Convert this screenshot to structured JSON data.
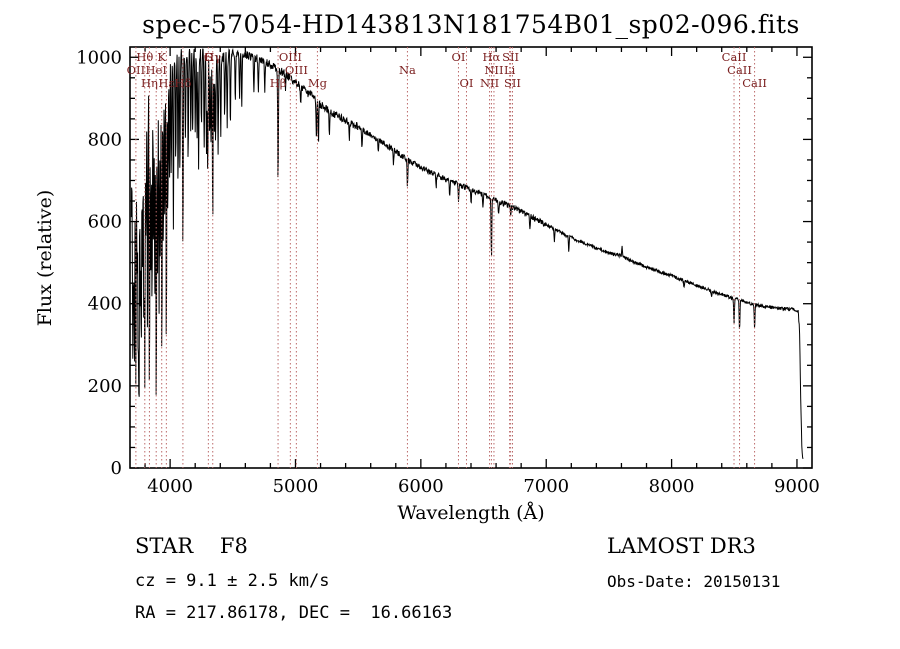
{
  "chart_data": {
    "type": "line",
    "title": "spec-57054-HD143813N181754B01_sp02-096.fits",
    "xlabel": "Wavelength (Å)",
    "ylabel": "Flux (relative)",
    "xlim": [
      3680,
      9120
    ],
    "ylim": [
      0,
      1025
    ],
    "x_ticks": [
      4000,
      5000,
      6000,
      7000,
      8000,
      9000
    ],
    "y_ticks": [
      0,
      200,
      400,
      600,
      800,
      1000
    ],
    "grid": false,
    "legend": "none",
    "colors": {
      "spectrum": "#000000",
      "mark_line": "#bb6a6a",
      "mark_label": "#7b1f1f",
      "axis": "#000000"
    },
    "line_width_angstrom": 4,
    "continuum": [
      [
        3690,
        620
      ],
      [
        3700,
        800
      ],
      [
        3715,
        855
      ],
      [
        3730,
        875
      ],
      [
        3745,
        890
      ],
      [
        3760,
        900
      ],
      [
        3775,
        908
      ],
      [
        3790,
        918
      ],
      [
        3810,
        932
      ],
      [
        3830,
        948
      ],
      [
        3850,
        958
      ],
      [
        3875,
        968
      ],
      [
        3900,
        978
      ],
      [
        3925,
        984
      ],
      [
        3950,
        990
      ],
      [
        3975,
        996
      ],
      [
        4000,
        1000
      ],
      [
        4030,
        1004
      ],
      [
        4060,
        1006
      ],
      [
        4100,
        1009
      ],
      [
        4150,
        1012
      ],
      [
        4200,
        1012
      ],
      [
        4250,
        1010
      ],
      [
        4300,
        1008
      ],
      [
        4350,
        1005
      ],
      [
        4400,
        1003
      ],
      [
        4450,
        1006
      ],
      [
        4500,
        1012
      ],
      [
        4550,
        1010
      ],
      [
        4600,
        1006
      ],
      [
        4650,
        1001
      ],
      [
        4700,
        996
      ],
      [
        4750,
        990
      ],
      [
        4800,
        983
      ],
      [
        4850,
        973
      ],
      [
        4900,
        963
      ],
      [
        4950,
        951
      ],
      [
        5000,
        939
      ],
      [
        5050,
        926
      ],
      [
        5100,
        913
      ],
      [
        5150,
        901
      ],
      [
        5200,
        885
      ],
      [
        5250,
        873
      ],
      [
        5300,
        863
      ],
      [
        5350,
        854
      ],
      [
        5400,
        847
      ],
      [
        5450,
        839
      ],
      [
        5500,
        831
      ],
      [
        5550,
        821
      ],
      [
        5600,
        811
      ],
      [
        5650,
        801
      ],
      [
        5700,
        791
      ],
      [
        5750,
        781
      ],
      [
        5800,
        771
      ],
      [
        5850,
        759
      ],
      [
        5900,
        749
      ],
      [
        5950,
        741
      ],
      [
        6000,
        733
      ],
      [
        6100,
        717
      ],
      [
        6200,
        702
      ],
      [
        6300,
        690
      ],
      [
        6400,
        678
      ],
      [
        6500,
        666
      ],
      [
        6600,
        653
      ],
      [
        6700,
        639
      ],
      [
        6800,
        624
      ],
      [
        6900,
        608
      ],
      [
        7000,
        592
      ],
      [
        7100,
        576
      ],
      [
        7200,
        561
      ],
      [
        7300,
        548
      ],
      [
        7400,
        536
      ],
      [
        7500,
        524
      ],
      [
        7600,
        516
      ],
      [
        7700,
        501
      ],
      [
        7800,
        489
      ],
      [
        7900,
        478
      ],
      [
        8000,
        468
      ],
      [
        8100,
        456
      ],
      [
        8200,
        445
      ],
      [
        8300,
        433
      ],
      [
        8400,
        423
      ],
      [
        8500,
        412
      ],
      [
        8600,
        403
      ],
      [
        8700,
        396
      ],
      [
        8800,
        391
      ],
      [
        8900,
        388
      ],
      [
        9000,
        385
      ],
      [
        9010,
        381
      ],
      [
        9020,
        340
      ],
      [
        9030,
        170
      ],
      [
        9040,
        40
      ],
      [
        9050,
        18
      ]
    ],
    "absorption_lines": [
      [
        3702,
        280
      ],
      [
        3709,
        500
      ],
      [
        3716,
        240
      ],
      [
        3727,
        170
      ],
      [
        3737,
        460
      ],
      [
        3745,
        290
      ],
      [
        3752,
        140
      ],
      [
        3762,
        400
      ],
      [
        3770,
        270
      ],
      [
        3780,
        500
      ],
      [
        3790,
        340
      ],
      [
        3798,
        220
      ],
      [
        3808,
        540
      ],
      [
        3820,
        290
      ],
      [
        3835,
        160
      ],
      [
        3846,
        480
      ],
      [
        3856,
        370
      ],
      [
        3868,
        530
      ],
      [
        3878,
        400
      ],
      [
        3889,
        130
      ],
      [
        3900,
        460
      ],
      [
        3912,
        370
      ],
      [
        3922,
        500
      ],
      [
        3934,
        250
      ],
      [
        3946,
        540
      ],
      [
        3958,
        600
      ],
      [
        3970,
        280
      ],
      [
        3982,
        620
      ],
      [
        3995,
        680
      ],
      [
        4009,
        700
      ],
      [
        4026,
        580
      ],
      [
        4045,
        740
      ],
      [
        4063,
        690
      ],
      [
        4078,
        730
      ],
      [
        4102,
        530
      ],
      [
        4122,
        790
      ],
      [
        4144,
        750
      ],
      [
        4165,
        820
      ],
      [
        4180,
        800
      ],
      [
        4200,
        830
      ],
      [
        4215,
        790
      ],
      [
        4227,
        720
      ],
      [
        4250,
        840
      ],
      [
        4272,
        790
      ],
      [
        4290,
        770
      ],
      [
        4300,
        710
      ],
      [
        4315,
        800
      ],
      [
        4326,
        780
      ],
      [
        4340,
        600
      ],
      [
        4352,
        810
      ],
      [
        4363,
        790
      ],
      [
        4383,
        750
      ],
      [
        4404,
        810
      ],
      [
        4435,
        860
      ],
      [
        4455,
        840
      ],
      [
        4481,
        830
      ],
      [
        4520,
        890
      ],
      [
        4554,
        900
      ],
      [
        4571,
        880
      ],
      [
        4668,
        915
      ],
      [
        4703,
        920
      ],
      [
        4755,
        905
      ],
      [
        4861,
        695
      ],
      [
        4920,
        925
      ],
      [
        5041,
        885
      ],
      [
        5167,
        800
      ],
      [
        5183,
        790
      ],
      [
        5270,
        810
      ],
      [
        5430,
        805
      ],
      [
        5530,
        785
      ],
      [
        5660,
        765
      ],
      [
        5782,
        740
      ],
      [
        5893,
        688
      ],
      [
        6122,
        682
      ],
      [
        6230,
        662
      ],
      [
        6300,
        648
      ],
      [
        6400,
        640
      ],
      [
        6495,
        628
      ],
      [
        6563,
        502
      ],
      [
        6620,
        618
      ],
      [
        6717,
        608
      ],
      [
        6870,
        578
      ],
      [
        7065,
        553
      ],
      [
        7180,
        528
      ],
      [
        7605,
        538
      ],
      [
        8100,
        438
      ],
      [
        8320,
        418
      ],
      [
        8498,
        348
      ],
      [
        8542,
        332
      ],
      [
        8662,
        338
      ]
    ],
    "noise_regions": [
      [
        3690,
        4500,
        16
      ],
      [
        4500,
        5500,
        10
      ],
      [
        5500,
        7000,
        7
      ],
      [
        7000,
        9120,
        4
      ]
    ],
    "spectral_marks": {
      "rows": [
        [
          [
            "Hθ",
            3798
          ],
          [
            "K",
            3933
          ],
          [
            "G",
            4305
          ],
          [
            "Hγ",
            4340
          ],
          [
            "OIII",
            4959
          ],
          [
            "OI",
            6300
          ],
          [
            "Hα",
            6563
          ],
          [
            "SII",
            6716
          ],
          [
            "CaII",
            8498
          ]
        ],
        [
          [
            "OII",
            3727
          ],
          [
            "HeI",
            3889
          ],
          [
            "OIII",
            5007
          ],
          [
            "Na",
            5893
          ],
          [
            "NII",
            6583
          ],
          [
            "Li",
            6708
          ],
          [
            "CaII",
            8542
          ]
        ],
        [
          [
            "Hη",
            3835
          ],
          [
            "Hε",
            3970
          ],
          [
            "Hδ",
            4102
          ],
          [
            "Hβ",
            4861
          ],
          [
            "Mg",
            5175
          ],
          [
            "OI",
            6364
          ],
          [
            "NII",
            6548
          ],
          [
            "SII",
            6731
          ],
          [
            "CaII",
            8662
          ]
        ]
      ]
    }
  },
  "annotations": {
    "object_type": "STAR    F8",
    "survey": "LAMOST DR3",
    "cz": "cz = 9.1 ± 2.5 km/s",
    "obs_date": "Obs-Date: 20150131",
    "coords": "RA = 217.86178, DEC =  16.66163"
  }
}
